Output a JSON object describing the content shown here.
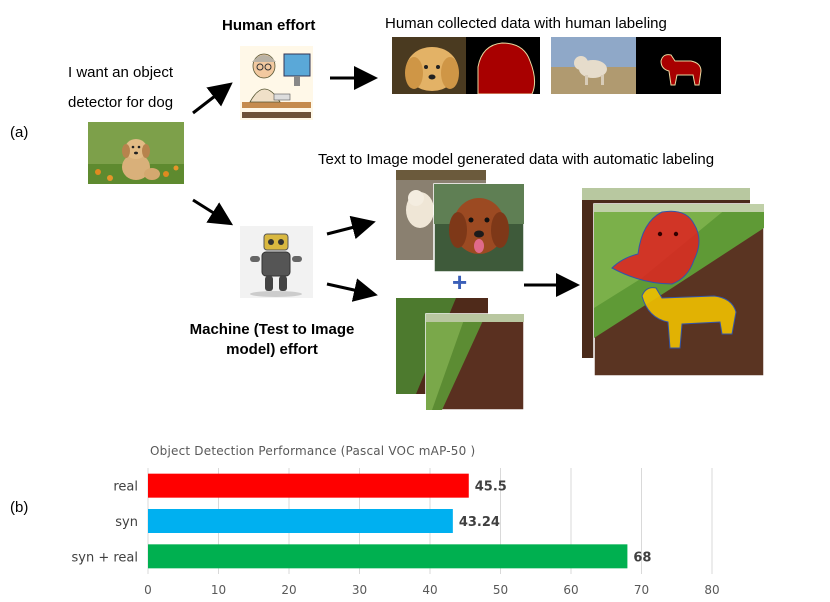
{
  "panel_labels": {
    "a": "(a)",
    "b": "(b)"
  },
  "request": {
    "line1": "I want an object",
    "line2": "detector for dog"
  },
  "human": {
    "title": "Human effort",
    "data_caption": "Human collected data with human labeling"
  },
  "machine": {
    "title_line1": "Machine (Test to Image",
    "title_line2": "model) effort",
    "data_caption": "Text to Image model generated data with automatic labeling"
  },
  "plus_sign": "+",
  "colors": {
    "arrow": "#000000",
    "plus": "#3b5fb8",
    "mask_red": "#a80000",
    "mask_overlay_red": "#e02020",
    "mask_overlay_yellow": "#f0c000",
    "grid": "#d9d9d9",
    "value_label": "#404040"
  },
  "chart_data": {
    "type": "bar",
    "orientation": "horizontal",
    "title": "Object Detection Performance (Pascal VOC mAP-50 )",
    "categories": [
      "real",
      "syn",
      "syn + real"
    ],
    "values": [
      45.5,
      43.24,
      68
    ],
    "value_labels": [
      "45.5",
      "43.24",
      "68"
    ],
    "bar_colors": [
      "#ff0000",
      "#00b0f0",
      "#00b050"
    ],
    "xlim": [
      0,
      80
    ],
    "xticks": [
      "0",
      "10",
      "20",
      "30",
      "40",
      "50",
      "60",
      "70",
      "80"
    ],
    "grid": true,
    "legend": "none"
  }
}
